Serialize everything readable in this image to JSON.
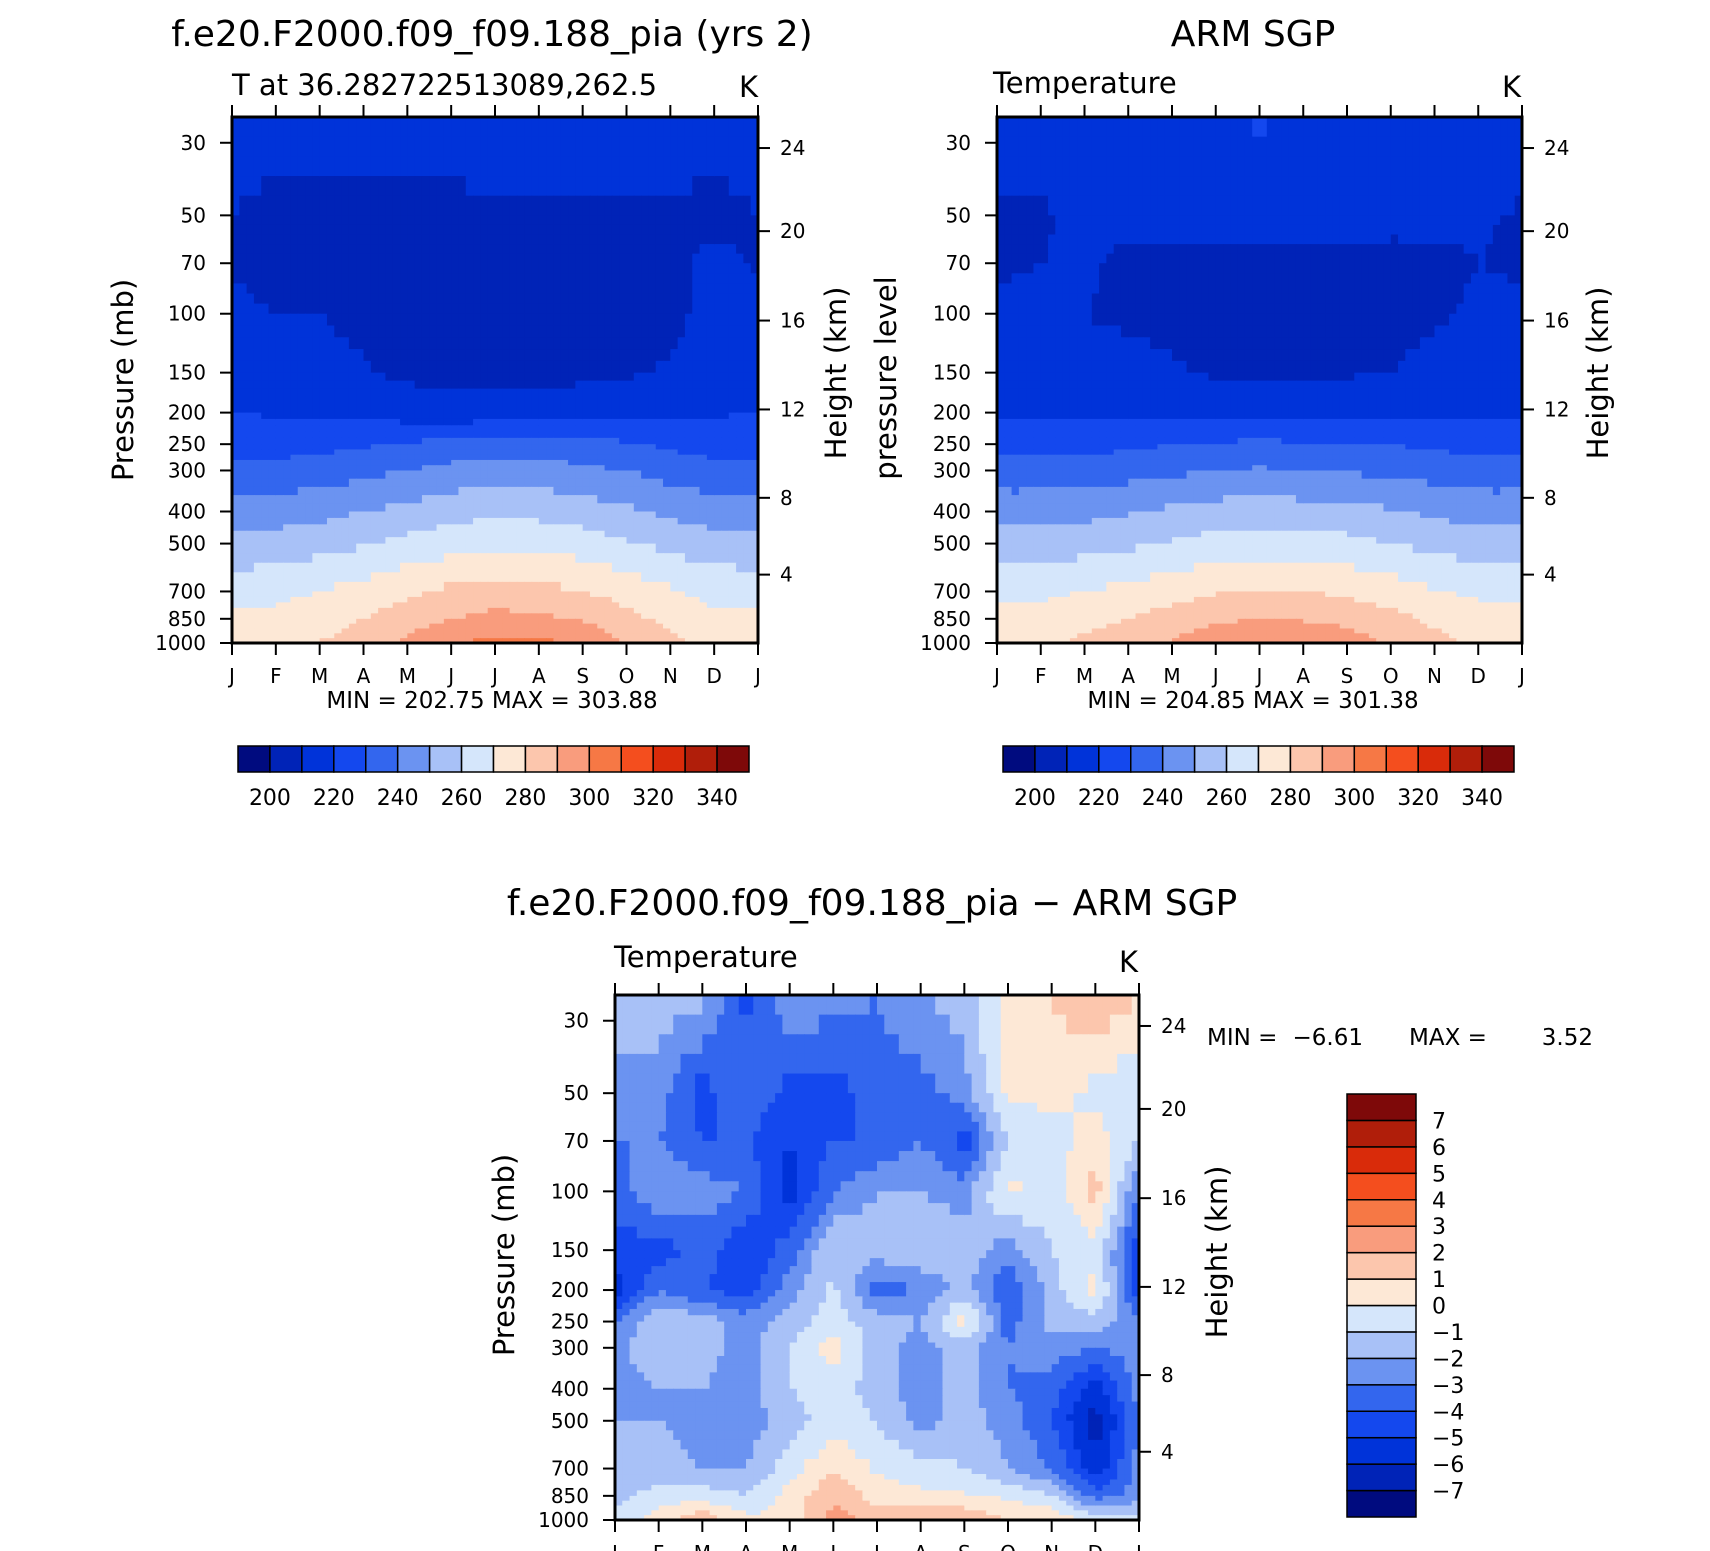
{
  "chart_data": [
    {
      "type": "heatmap",
      "title": "f.e20.F2000.f09_f09.188_pia (yrs 2)",
      "subtitle_left": "T at 36.282722513089,262.5",
      "subtitle_right": "K",
      "ylabel": "Pressure (mb)",
      "ylabel_right": "Height (km)",
      "months": [
        "J",
        "F",
        "M",
        "A",
        "M",
        "J",
        "J",
        "A",
        "S",
        "O",
        "N",
        "D",
        "J"
      ],
      "pressure_ticks": [
        "30",
        "50",
        "70",
        "100",
        "150",
        "200",
        "250",
        "300",
        "400",
        "500",
        "700",
        "850",
        "1000"
      ],
      "height_ticks": [
        "24",
        "20",
        "16",
        "12",
        "8",
        "4"
      ],
      "min_max": "MIN = 202.75 MAX = 303.88",
      "colorbar_labels": [
        "200",
        "220",
        "240",
        "260",
        "280",
        "300",
        "320",
        "340"
      ],
      "colors": [
        "#000b7f",
        "#0023b7",
        "#0033d9",
        "#1448ee",
        "#3366ee",
        "#6b93f1",
        "#a8c1f7",
        "#d5e6fb",
        "#fde8d6",
        "#fcc6ad",
        "#f99c7d",
        "#f67845",
        "#f44e1e",
        "#d92b0a",
        "#b01e0a",
        "#7e0909"
      ],
      "z_layers": [
        {
          "level": "1000",
          "values": [
            275,
            277,
            280,
            285,
            292,
            299,
            303,
            302,
            298,
            290,
            282,
            276,
            275
          ]
        },
        {
          "level": "850",
          "values": [
            272,
            273,
            276,
            280,
            285,
            290,
            293,
            292,
            289,
            283,
            277,
            272,
            272
          ]
        },
        {
          "level": "700",
          "values": [
            266,
            267,
            270,
            274,
            278,
            282,
            284,
            283,
            280,
            276,
            271,
            267,
            266
          ]
        },
        {
          "level": "500",
          "values": [
            253,
            254,
            256,
            259,
            263,
            266,
            268,
            267,
            265,
            261,
            257,
            254,
            253
          ]
        },
        {
          "level": "400",
          "values": [
            244,
            245,
            247,
            250,
            253,
            256,
            258,
            257,
            255,
            252,
            248,
            245,
            244
          ]
        },
        {
          "level": "300",
          "values": [
            232,
            233,
            235,
            237,
            240,
            243,
            245,
            244,
            242,
            240,
            236,
            233,
            232
          ]
        },
        {
          "level": "250",
          "values": [
            226,
            226,
            227,
            229,
            231,
            233,
            235,
            234,
            233,
            231,
            228,
            226,
            226
          ]
        },
        {
          "level": "200",
          "values": [
            220,
            219,
            219,
            218,
            215,
            214,
            214,
            214,
            215,
            217,
            218,
            219,
            220
          ]
        },
        {
          "level": "150",
          "values": [
            217,
            215,
            214,
            211,
            208,
            207,
            207,
            207,
            208,
            209,
            211,
            213,
            217
          ]
        },
        {
          "level": "100",
          "values": [
            212,
            210,
            210,
            207,
            205,
            204,
            204,
            204,
            205,
            205,
            207,
            214,
            212
          ]
        },
        {
          "level": "70",
          "values": [
            209,
            207,
            206,
            205,
            205,
            204,
            204,
            205,
            205,
            206,
            208,
            212,
            209
          ]
        },
        {
          "level": "50",
          "values": [
            210,
            208,
            207,
            208,
            208,
            208,
            209,
            209,
            209,
            209,
            209,
            208,
            210
          ]
        },
        {
          "level": "30",
          "values": [
            214,
            213,
            213,
            213,
            213,
            214,
            214,
            214,
            214,
            214,
            214,
            213,
            214
          ]
        }
      ]
    },
    {
      "type": "heatmap",
      "title": "ARM SGP",
      "subtitle_left": "Temperature",
      "subtitle_right": "K",
      "ylabel": "pressure level",
      "ylabel_right": "Height (km)",
      "months": [
        "J",
        "F",
        "M",
        "A",
        "M",
        "J",
        "J",
        "A",
        "S",
        "O",
        "N",
        "D",
        "J"
      ],
      "pressure_ticks": [
        "30",
        "50",
        "70",
        "100",
        "150",
        "200",
        "250",
        "300",
        "400",
        "500",
        "700",
        "850",
        "1000"
      ],
      "height_ticks": [
        "24",
        "20",
        "16",
        "12",
        "8",
        "4"
      ],
      "min_max": "MIN = 204.85 MAX = 301.38",
      "colorbar_labels": [
        "200",
        "220",
        "240",
        "260",
        "280",
        "300",
        "320",
        "340"
      ],
      "colors": [
        "#000b7f",
        "#0023b7",
        "#0033d9",
        "#1448ee",
        "#3366ee",
        "#6b93f1",
        "#a8c1f7",
        "#d5e6fb",
        "#fde8d6",
        "#fcc6ad",
        "#f99c7d",
        "#f67845",
        "#f44e1e",
        "#d92b0a",
        "#b01e0a",
        "#7e0909"
      ],
      "z_layers": [
        {
          "level": "1000",
          "values": [
            276,
            278,
            282,
            286,
            291,
            296,
            300,
            299,
            295,
            289,
            283,
            278,
            276
          ]
        },
        {
          "level": "850",
          "values": [
            273,
            274,
            277,
            280,
            284,
            288,
            290,
            289,
            287,
            283,
            278,
            274,
            273
          ]
        },
        {
          "level": "700",
          "values": [
            267,
            268,
            270,
            273,
            276,
            279,
            281,
            280,
            278,
            275,
            271,
            268,
            267
          ]
        },
        {
          "level": "500",
          "values": [
            254,
            255,
            256,
            258,
            261,
            264,
            265,
            264,
            263,
            260,
            257,
            255,
            254
          ]
        },
        {
          "level": "400",
          "values": [
            246,
            246,
            247,
            249,
            252,
            254,
            255,
            254,
            253,
            251,
            248,
            246,
            246
          ]
        },
        {
          "level": "300",
          "values": [
            234,
            234,
            235,
            236,
            238,
            240,
            241,
            240,
            239,
            238,
            236,
            234,
            234
          ]
        },
        {
          "level": "250",
          "values": [
            227,
            227,
            227,
            228,
            230,
            231,
            232,
            231,
            231,
            230,
            228,
            227,
            227
          ]
        },
        {
          "level": "200",
          "values": [
            219,
            219,
            218,
            218,
            218,
            217,
            217,
            217,
            217,
            217,
            218,
            218,
            219
          ]
        },
        {
          "level": "150",
          "values": [
            214,
            213,
            212,
            212,
            211,
            209,
            208,
            208,
            209,
            210,
            212,
            213,
            214
          ]
        },
        {
          "level": "100",
          "values": [
            212,
            211,
            210,
            209,
            208,
            207,
            206,
            206,
            207,
            208,
            209,
            211,
            212
          ]
        },
        {
          "level": "70",
          "values": [
            209,
            210,
            211,
            208,
            207,
            207,
            207,
            207,
            207,
            207,
            208,
            210,
            209
          ]
        },
        {
          "level": "50",
          "values": [
            209,
            209,
            212,
            213,
            213,
            213,
            213,
            213,
            213,
            213,
            212,
            211,
            209
          ]
        },
        {
          "level": "30",
          "values": [
            215,
            215,
            215,
            216,
            218,
            219,
            221,
            220,
            218,
            217,
            216,
            215,
            215
          ]
        }
      ]
    },
    {
      "type": "heatmap",
      "title": "f.e20.F2000.f09_f09.188_pia − ARM SGP",
      "subtitle_left": "Temperature",
      "subtitle_right": "K",
      "ylabel": "Pressure (mb)",
      "ylabel_right": "Height (km)",
      "months": [
        "J",
        "F",
        "M",
        "A",
        "M",
        "J",
        "J",
        "A",
        "S",
        "O",
        "N",
        "D",
        "J"
      ],
      "pressure_ticks": [
        "30",
        "50",
        "70",
        "100",
        "150",
        "200",
        "250",
        "300",
        "400",
        "500",
        "700",
        "850",
        "1000"
      ],
      "height_ticks": [
        "24",
        "20",
        "16",
        "12",
        "8",
        "4"
      ],
      "min_label": "MIN =",
      "min_value": "−6.61",
      "max_label": "MAX =",
      "max_value": "3.52",
      "colorbar_labels": [
        "7",
        "6",
        "5",
        "4",
        "3",
        "2",
        "1",
        "0",
        "−1",
        "−2",
        "−3",
        "−4",
        "−5",
        "−6",
        "−7"
      ],
      "colors": [
        "#000b7f",
        "#0023b7",
        "#0033d9",
        "#1448ee",
        "#3366ee",
        "#6b93f1",
        "#a8c1f7",
        "#d5e6fb",
        "#fde8d6",
        "#fcc6ad",
        "#f99c7d",
        "#f67845",
        "#f44e1e",
        "#d92b0a",
        "#b01e0a",
        "#7e0909"
      ],
      "z_layers": [
        {
          "level": "1000",
          "values": [
            -0.5,
            0.5,
            1.8,
            0.3,
            0.2,
            2.5,
            1.5,
            2.2,
            2.0,
            1.0,
            1.0,
            -0.5,
            -0.5
          ]
        },
        {
          "level": "850",
          "values": [
            -1.5,
            -0.5,
            -0.5,
            -1.0,
            0.4,
            1.8,
            0.6,
            0.2,
            0.1,
            -0.2,
            -1.0,
            -3.5,
            -2.5
          ]
        },
        {
          "level": "700",
          "values": [
            -2.0,
            -1.5,
            -2.0,
            -2.0,
            -0.5,
            1.0,
            -0.2,
            -0.5,
            -1.0,
            -2.0,
            -3.0,
            -5.8,
            -2.5
          ]
        },
        {
          "level": "500",
          "values": [
            -2.0,
            -2.0,
            -2.5,
            -2.5,
            -1.5,
            -0.5,
            -1.0,
            -2.5,
            -1.5,
            -2.5,
            -4.0,
            -6.6,
            -3.0
          ]
        },
        {
          "level": "400",
          "values": [
            -2.5,
            -2.0,
            -2.0,
            -2.5,
            -1.0,
            -0.5,
            -1.5,
            -2.5,
            -1.5,
            -3.0,
            -3.5,
            -5.5,
            -2.5
          ]
        },
        {
          "level": "300",
          "values": [
            -2.5,
            -1.0,
            -1.5,
            -2.5,
            -1.0,
            0.5,
            -1.5,
            -2.5,
            -1.5,
            -3.0,
            -2.5,
            -3.0,
            -2.5
          ]
        },
        {
          "level": "250",
          "values": [
            -3.0,
            -1.0,
            -1.5,
            -2.5,
            -1.5,
            -0.5,
            -1.5,
            -2.0,
            0.5,
            -3.5,
            -1.5,
            -1.5,
            -2.5
          ]
        },
        {
          "level": "200",
          "values": [
            -5.5,
            -3.0,
            -4.0,
            -4.5,
            -2.5,
            -0.8,
            -3.5,
            -3.0,
            -1.5,
            -4.0,
            -1.5,
            0.5,
            -5.0
          ]
        },
        {
          "level": "150",
          "values": [
            -4.5,
            -4.5,
            -3.5,
            -5.0,
            -3.5,
            -1.0,
            -1.5,
            -1.0,
            -1.5,
            -2.5,
            -1.0,
            -0.5,
            -4.5
          ]
        },
        {
          "level": "100",
          "values": [
            -3.5,
            -2.0,
            -2.5,
            -3.0,
            -5.5,
            -3.0,
            -2.0,
            -2.0,
            -2.5,
            0.3,
            -0.5,
            1.5,
            -3.0
          ]
        },
        {
          "level": "70",
          "values": [
            -3.0,
            -3.0,
            -4.0,
            -4.0,
            -5.0,
            -4.0,
            -4.0,
            -3.0,
            -4.5,
            -1.0,
            -0.5,
            0.5,
            -1.0
          ]
        },
        {
          "level": "50",
          "values": [
            -2.5,
            -2.5,
            -4.5,
            -3.0,
            -4.5,
            -4.5,
            -3.5,
            -3.5,
            -2.5,
            0.3,
            0.3,
            -0.3,
            -1.0
          ]
        },
        {
          "level": "30",
          "values": [
            -1.0,
            -1.5,
            -1.5,
            -4.5,
            -2.0,
            -2.5,
            -3.0,
            -2.0,
            -1.5,
            0.5,
            1.0,
            2.0,
            1.0
          ]
        }
      ]
    }
  ]
}
